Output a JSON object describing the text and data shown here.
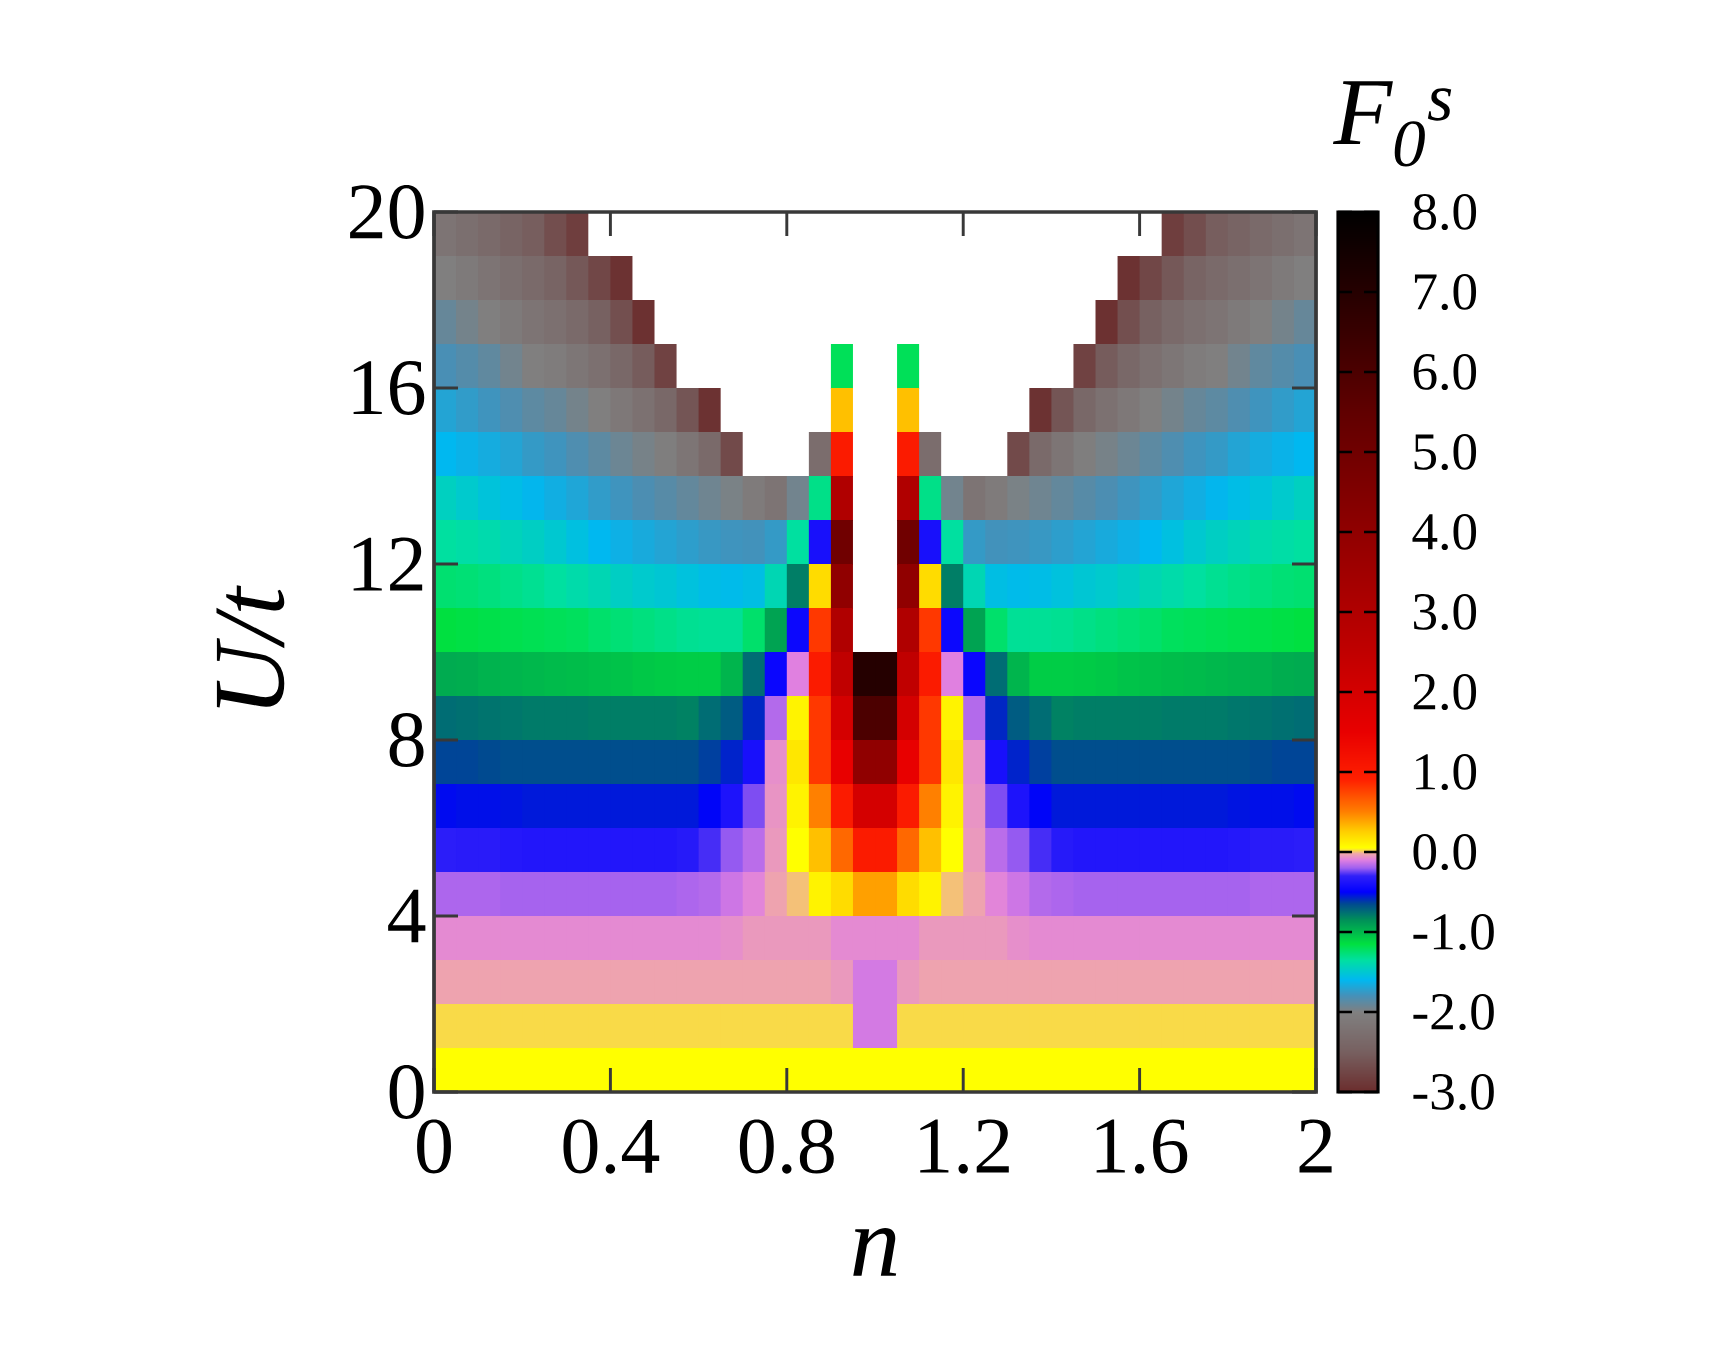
{
  "chart_data": {
    "type": "heatmap",
    "xlabel": "n",
    "ylabel": "U/t",
    "clabel": "F$_{0}$$^{s}$",
    "xlim": [
      0,
      2
    ],
    "ylim": [
      0,
      20
    ],
    "xticks": [
      0,
      0.4,
      0.8,
      1.2,
      1.6,
      2
    ],
    "yticks": [
      0,
      4,
      8,
      12,
      16,
      20
    ],
    "clim": [
      -3,
      8
    ],
    "cticks": [
      {
        "value": -3,
        "label": "-3.0"
      },
      {
        "value": -2,
        "label": "-2.0"
      },
      {
        "value": -1,
        "label": "-1.0"
      },
      {
        "value": 0,
        "label": "0.0"
      },
      {
        "value": 1,
        "label": "1.0"
      },
      {
        "value": 2,
        "label": "2.0"
      },
      {
        "value": 3,
        "label": "3.0"
      },
      {
        "value": 4,
        "label": "4.0"
      },
      {
        "value": 5,
        "label": "5.0"
      },
      {
        "value": 6,
        "label": "6.0"
      },
      {
        "value": 7,
        "label": "7.0"
      },
      {
        "value": 8,
        "label": "8.0"
      }
    ],
    "x": [
      0.025,
      0.075,
      0.125,
      0.175,
      0.225,
      0.275,
      0.325,
      0.375,
      0.425,
      0.475,
      0.525,
      0.575,
      0.625,
      0.675,
      0.725,
      0.775,
      0.825,
      0.875,
      0.925,
      0.975,
      1.025,
      1.075,
      1.125,
      1.175,
      1.225,
      1.275,
      1.325,
      1.375,
      1.425,
      1.475,
      1.525,
      1.575,
      1.625,
      1.675,
      1.725,
      1.775,
      1.825,
      1.875,
      1.925,
      1.975
    ],
    "y": [
      19.5,
      18.5,
      17.5,
      16.5,
      15.5,
      14.5,
      13.5,
      12.5,
      11.5,
      10.5,
      9.5,
      8.5,
      7.5,
      6.5,
      5.5,
      4.5,
      3.5,
      2.5,
      1.5,
      0.5
    ],
    "cells": [
      [
        -2.18,
        -2.26,
        -2.34,
        -2.43,
        -2.52,
        -2.68,
        -2.83,
        null,
        null,
        null,
        null,
        null,
        null,
        null,
        null,
        null,
        null,
        null,
        null,
        null,
        null,
        null,
        null,
        null,
        null,
        null,
        null,
        null,
        null,
        null,
        null,
        null,
        null,
        -2.83,
        -2.68,
        -2.52,
        -2.43,
        -2.34,
        -2.26,
        -2.18
      ],
      [
        -2.02,
        -2.1,
        -2.18,
        -2.27,
        -2.35,
        -2.44,
        -2.58,
        -2.75,
        -2.95,
        null,
        null,
        null,
        null,
        null,
        null,
        null,
        null,
        null,
        null,
        null,
        null,
        null,
        null,
        null,
        null,
        null,
        null,
        null,
        null,
        null,
        null,
        -2.95,
        -2.75,
        -2.58,
        -2.44,
        -2.35,
        -2.27,
        -2.18,
        -2.1,
        -2.02
      ],
      [
        -1.91,
        -1.96,
        -2.02,
        -2.1,
        -2.18,
        -2.25,
        -2.35,
        -2.48,
        -2.67,
        -2.96,
        null,
        null,
        null,
        null,
        null,
        null,
        null,
        null,
        null,
        null,
        null,
        null,
        null,
        null,
        null,
        null,
        null,
        null,
        null,
        null,
        -2.96,
        -2.67,
        -2.48,
        -2.35,
        -2.25,
        -2.18,
        -2.1,
        -2.02,
        -1.96,
        -1.91
      ],
      [
        -1.81,
        -1.85,
        -1.89,
        -1.95,
        -2.02,
        -2.07,
        -2.15,
        -2.25,
        -2.38,
        -2.54,
        -2.79,
        null,
        null,
        null,
        null,
        null,
        null,
        null,
        -1.2,
        null,
        null,
        -1.2,
        null,
        null,
        null,
        null,
        null,
        null,
        null,
        -2.79,
        -2.54,
        -2.38,
        -2.25,
        -2.15,
        -2.07,
        -2.02,
        -1.95,
        -1.89,
        -1.85,
        -1.81
      ],
      [
        -1.7,
        -1.74,
        -1.78,
        -1.83,
        -1.88,
        -1.91,
        -1.96,
        -2.02,
        -2.13,
        -2.24,
        -2.37,
        -2.61,
        -2.95,
        null,
        null,
        null,
        null,
        null,
        0.3,
        null,
        null,
        0.3,
        null,
        null,
        null,
        null,
        null,
        -2.95,
        -2.61,
        -2.37,
        -2.24,
        -2.13,
        -2.02,
        -1.96,
        -1.91,
        -1.88,
        -1.83,
        -1.78,
        -1.74,
        -1.7
      ],
      [
        -1.6,
        -1.63,
        -1.66,
        -1.7,
        -1.75,
        -1.78,
        -1.83,
        -1.88,
        -1.93,
        -1.97,
        -2.03,
        -2.17,
        -2.35,
        -2.72,
        null,
        null,
        null,
        -2.3,
        1.0,
        null,
        null,
        1.0,
        -2.3,
        null,
        null,
        null,
        -2.72,
        -2.35,
        -2.17,
        -2.03,
        -1.97,
        -1.93,
        -1.88,
        -1.83,
        -1.78,
        -1.75,
        -1.7,
        -1.66,
        -1.63,
        -1.6
      ],
      [
        -1.45,
        -1.49,
        -1.53,
        -1.57,
        -1.61,
        -1.65,
        -1.69,
        -1.74,
        -1.78,
        -1.82,
        -1.86,
        -1.9,
        -1.94,
        -1.98,
        -2.08,
        -2.18,
        -1.95,
        -1.3,
        3.0,
        null,
        null,
        3.0,
        -1.3,
        -1.95,
        -2.18,
        -2.08,
        -1.98,
        -1.94,
        -1.9,
        -1.86,
        -1.82,
        -1.78,
        -1.74,
        -1.69,
        -1.65,
        -1.61,
        -1.57,
        -1.53,
        -1.49,
        -1.45
      ],
      [
        -1.35,
        -1.37,
        -1.39,
        -1.43,
        -1.46,
        -1.5,
        -1.55,
        -1.6,
        -1.64,
        -1.67,
        -1.7,
        -1.73,
        -1.76,
        -1.78,
        -1.79,
        -1.75,
        -1.35,
        -0.4,
        5.0,
        null,
        null,
        5.0,
        -0.4,
        -1.35,
        -1.75,
        -1.79,
        -1.78,
        -1.76,
        -1.73,
        -1.7,
        -1.67,
        -1.64,
        -1.6,
        -1.55,
        -1.5,
        -1.46,
        -1.43,
        -1.39,
        -1.37,
        -1.35
      ],
      [
        -1.25,
        -1.26,
        -1.28,
        -1.3,
        -1.32,
        -1.35,
        -1.38,
        -1.41,
        -1.46,
        -1.49,
        -1.51,
        -1.54,
        -1.57,
        -1.58,
        -1.56,
        -1.41,
        -0.8,
        0.2,
        4.0,
        null,
        null,
        4.0,
        0.2,
        -0.8,
        -1.41,
        -1.56,
        -1.58,
        -1.57,
        -1.54,
        -1.51,
        -1.49,
        -1.46,
        -1.41,
        -1.38,
        -1.35,
        -1.32,
        -1.3,
        -1.28,
        -1.26,
        -1.25
      ],
      [
        -1.15,
        -1.16,
        -1.17,
        -1.18,
        -1.19,
        -1.2,
        -1.21,
        -1.24,
        -1.26,
        -1.28,
        -1.3,
        -1.32,
        -1.33,
        -1.33,
        -1.24,
        -0.92,
        -0.45,
        0.8,
        3.0,
        null,
        null,
        3.0,
        0.8,
        -0.45,
        -0.92,
        -1.24,
        -1.33,
        -1.33,
        -1.32,
        -1.3,
        -1.28,
        -1.26,
        -1.24,
        -1.21,
        -1.2,
        -1.19,
        -1.18,
        -1.17,
        -1.16,
        -1.15
      ],
      [
        -0.95,
        -0.96,
        -0.98,
        -0.99,
        -1.0,
        -1.01,
        -1.02,
        -1.03,
        -1.04,
        -1.06,
        -1.07,
        -1.08,
        -1.08,
        -0.99,
        -0.75,
        -0.46,
        -0.1,
        1.0,
        2.5,
        7.0,
        7.0,
        2.5,
        1.0,
        -0.1,
        -0.46,
        -0.75,
        -0.99,
        -1.08,
        -1.08,
        -1.07,
        -1.06,
        -1.04,
        -1.03,
        -1.02,
        -1.01,
        -1.0,
        -0.99,
        -0.98,
        -0.96,
        -0.95
      ],
      [
        -0.75,
        -0.76,
        -0.77,
        -0.78,
        -0.79,
        -0.79,
        -0.79,
        -0.8,
        -0.8,
        -0.8,
        -0.8,
        -0.81,
        -0.75,
        -0.7,
        -0.58,
        -0.17,
        0.1,
        0.8,
        2.0,
        6.0,
        6.0,
        2.0,
        0.8,
        0.1,
        -0.17,
        -0.58,
        -0.7,
        -0.75,
        -0.81,
        -0.8,
        -0.8,
        -0.8,
        -0.8,
        -0.79,
        -0.79,
        -0.79,
        -0.78,
        -0.77,
        -0.76,
        -0.75
      ],
      [
        -0.64,
        -0.64,
        -0.65,
        -0.66,
        -0.66,
        -0.66,
        -0.66,
        -0.66,
        -0.66,
        -0.66,
        -0.66,
        -0.66,
        -0.63,
        -0.57,
        -0.4,
        -0.07,
        0.15,
        0.8,
        1.5,
        4.0,
        4.0,
        1.5,
        0.8,
        0.15,
        -0.07,
        -0.4,
        -0.57,
        -0.63,
        -0.66,
        -0.66,
        -0.66,
        -0.66,
        -0.66,
        -0.66,
        -0.66,
        -0.66,
        -0.66,
        -0.65,
        -0.64,
        -0.64
      ],
      [
        -0.52,
        -0.53,
        -0.53,
        -0.54,
        -0.55,
        -0.55,
        -0.55,
        -0.55,
        -0.55,
        -0.55,
        -0.55,
        -0.55,
        -0.51,
        -0.38,
        -0.23,
        -0.06,
        0.1,
        0.5,
        1.0,
        2.0,
        2.0,
        1.0,
        0.5,
        0.1,
        -0.06,
        -0.23,
        -0.38,
        -0.51,
        -0.55,
        -0.55,
        -0.55,
        -0.55,
        -0.55,
        -0.55,
        -0.55,
        -0.55,
        -0.54,
        -0.53,
        -0.53,
        -0.52
      ],
      [
        -0.32,
        -0.33,
        -0.33,
        -0.35,
        -0.36,
        -0.36,
        -0.36,
        -0.36,
        -0.36,
        -0.36,
        -0.36,
        -0.34,
        -0.28,
        -0.21,
        -0.16,
        -0.05,
        0.05,
        0.3,
        0.6,
        1.0,
        1.0,
        0.6,
        0.3,
        0.05,
        -0.05,
        -0.16,
        -0.21,
        -0.28,
        -0.34,
        -0.36,
        -0.36,
        -0.36,
        -0.36,
        -0.36,
        -0.36,
        -0.36,
        -0.35,
        -0.33,
        -0.33,
        -0.32
      ],
      [
        -0.18,
        -0.18,
        -0.18,
        -0.19,
        -0.19,
        -0.19,
        -0.19,
        -0.19,
        -0.19,
        -0.19,
        -0.19,
        -0.18,
        -0.17,
        -0.13,
        -0.09,
        -0.03,
        0.0,
        0.1,
        0.2,
        0.4,
        0.4,
        0.2,
        0.1,
        0.0,
        -0.03,
        -0.09,
        -0.13,
        -0.17,
        -0.18,
        -0.19,
        -0.19,
        -0.19,
        -0.19,
        -0.19,
        -0.19,
        -0.19,
        -0.19,
        -0.18,
        -0.18,
        -0.18
      ],
      [
        -0.08,
        -0.08,
        -0.08,
        -0.08,
        -0.08,
        -0.08,
        -0.08,
        -0.08,
        -0.08,
        -0.08,
        -0.08,
        -0.08,
        -0.08,
        -0.07,
        -0.05,
        -0.05,
        -0.05,
        -0.05,
        -0.08,
        -0.08,
        -0.08,
        -0.08,
        -0.05,
        -0.05,
        -0.05,
        -0.05,
        -0.07,
        -0.08,
        -0.08,
        -0.08,
        -0.08,
        -0.08,
        -0.08,
        -0.08,
        -0.08,
        -0.08,
        -0.08,
        -0.08,
        -0.08,
        -0.08
      ],
      [
        -0.03,
        -0.03,
        -0.03,
        -0.03,
        -0.03,
        -0.03,
        -0.03,
        -0.03,
        -0.03,
        -0.03,
        -0.03,
        -0.03,
        -0.03,
        -0.03,
        -0.03,
        -0.03,
        -0.03,
        -0.03,
        -0.05,
        -0.12,
        -0.12,
        -0.05,
        -0.03,
        -0.03,
        -0.03,
        -0.03,
        -0.03,
        -0.03,
        -0.03,
        -0.03,
        -0.03,
        -0.03,
        -0.03,
        -0.03,
        -0.03,
        -0.03,
        -0.03,
        -0.03,
        -0.03,
        -0.03
      ],
      [
        0.02,
        0.02,
        0.02,
        0.02,
        0.02,
        0.02,
        0.02,
        0.02,
        0.02,
        0.02,
        0.02,
        0.02,
        0.02,
        0.02,
        0.02,
        0.02,
        0.02,
        0.02,
        0.02,
        -0.12,
        -0.12,
        0.02,
        0.02,
        0.02,
        0.02,
        0.02,
        0.02,
        0.02,
        0.02,
        0.02,
        0.02,
        0.02,
        0.02,
        0.02,
        0.02,
        0.02,
        0.02,
        0.02,
        0.02,
        0.02
      ],
      [
        0.05,
        0.05,
        0.05,
        0.05,
        0.05,
        0.05,
        0.05,
        0.05,
        0.05,
        0.05,
        0.05,
        0.05,
        0.05,
        0.05,
        0.05,
        0.05,
        0.05,
        0.05,
        0.05,
        0.05,
        0.05,
        0.05,
        0.05,
        0.05,
        0.05,
        0.05,
        0.05,
        0.05,
        0.05,
        0.05,
        0.05,
        0.05,
        0.05,
        0.05,
        0.05,
        0.05,
        0.05,
        0.05,
        0.05,
        0.05
      ]
    ]
  }
}
